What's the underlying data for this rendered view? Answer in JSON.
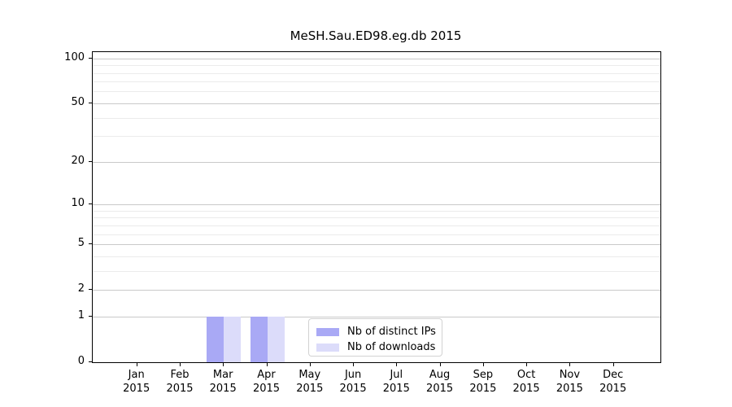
{
  "chart_data": {
    "type": "bar",
    "title": "MeSH.Sau.ED98.eg.db 2015",
    "categories": [
      "Jan 2015",
      "Feb 2015",
      "Mar 2015",
      "Apr 2015",
      "May 2015",
      "Jun 2015",
      "Jul 2015",
      "Aug 2015",
      "Sep 2015",
      "Oct 2015",
      "Nov 2015",
      "Dec 2015"
    ],
    "series": [
      {
        "name": "Nb of distinct IPs",
        "color": "#a9a9f5",
        "values": [
          0,
          0,
          1,
          1,
          0,
          0,
          0,
          0,
          0,
          0,
          0,
          0
        ]
      },
      {
        "name": "Nb of downloads",
        "color": "#dcdcfa",
        "values": [
          0,
          0,
          1,
          1,
          0,
          0,
          0,
          0,
          0,
          0,
          0,
          0
        ]
      }
    ],
    "xlabel": "",
    "ylabel": "",
    "y_scale": "log1p",
    "y_ticks": [
      0,
      1,
      2,
      5,
      10,
      20,
      50,
      100
    ],
    "y_minor_ticks": [
      3,
      4,
      6,
      7,
      8,
      9,
      30,
      40,
      60,
      70,
      80,
      90
    ],
    "ylim": [
      0,
      110
    ],
    "grid": "horizontal",
    "legend_position": "lower center"
  },
  "colors": {
    "grid_major": "#c9c9c9",
    "grid_minor": "#ebebeb",
    "spine": "#000000",
    "legend_border": "#d2d2d2"
  }
}
